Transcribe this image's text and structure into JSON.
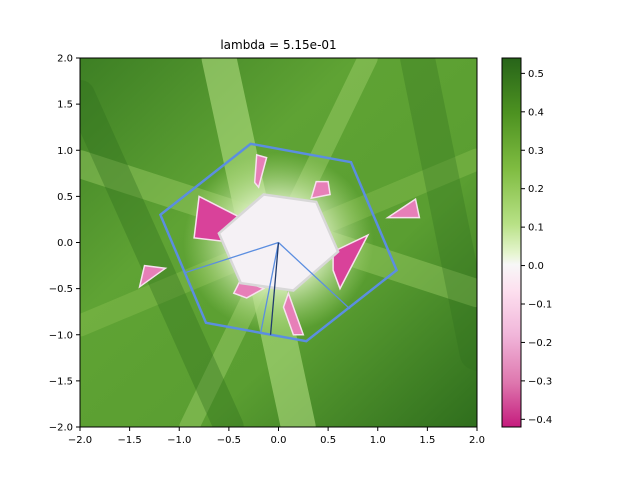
{
  "chart_data": {
    "type": "heatmap",
    "title": "lambda = 5.15e-01",
    "xlabel": "",
    "ylabel": "",
    "xlim": [
      -2.0,
      2.0
    ],
    "ylim": [
      -2.0,
      2.0
    ],
    "x_ticks": [
      -2.0,
      -1.5,
      -1.0,
      -0.5,
      0.0,
      0.5,
      1.0,
      1.5,
      2.0
    ],
    "x_tick_labels": [
      "−2.0",
      "−1.5",
      "−1.0",
      "−0.5",
      "0.0",
      "0.5",
      "1.0",
      "1.5",
      "2.0"
    ],
    "y_ticks": [
      2.0,
      1.5,
      1.0,
      0.5,
      0.0,
      -0.5,
      -1.0,
      -1.5,
      -2.0
    ],
    "y_tick_labels": [
      "2.0",
      "1.5",
      "1.0",
      "0.5",
      "0.0",
      "−0.5",
      "−1.0",
      "−1.5",
      "−2.0"
    ],
    "colorbar": {
      "range": [
        -0.42,
        0.54
      ],
      "ticks": [
        0.5,
        0.4,
        0.3,
        0.2,
        0.1,
        0.0,
        -0.1,
        -0.2,
        -0.3,
        -0.4
      ],
      "tick_labels": [
        "0.5",
        "0.4",
        "0.3",
        "0.2",
        "0.1",
        "0.0",
        "−0.1",
        "−0.2",
        "−0.3",
        "−0.4"
      ],
      "colormap": "PiYG"
    },
    "outer_hexagon": [
      [
        -0.28,
        1.07
      ],
      [
        0.73,
        0.87
      ],
      [
        1.19,
        -0.3
      ],
      [
        0.28,
        -1.07
      ],
      [
        -0.73,
        -0.87
      ],
      [
        -1.19,
        0.3
      ]
    ],
    "inner_hexagon": [
      [
        -0.15,
        0.52
      ],
      [
        0.38,
        0.44
      ],
      [
        0.6,
        -0.1
      ],
      [
        0.15,
        -0.52
      ],
      [
        -0.38,
        -0.44
      ],
      [
        -0.6,
        0.1
      ]
    ],
    "rays": [
      {
        "from": [
          0.0,
          0.0
        ],
        "to": [
          -0.95,
          -0.33
        ]
      },
      {
        "from": [
          0.0,
          0.0
        ],
        "to": [
          0.72,
          -0.72
        ]
      },
      {
        "from": [
          0.0,
          0.0
        ],
        "to": [
          -0.18,
          -0.98
        ]
      },
      {
        "from": [
          0.0,
          0.0
        ],
        "to": [
          -0.08,
          -1.0
        ]
      }
    ],
    "negative_regions": [
      {
        "points": [
          [
            -0.45,
            0.0
          ],
          [
            -0.22,
            0.18
          ],
          [
            -0.8,
            0.5
          ],
          [
            -0.85,
            0.05
          ]
        ],
        "value": -0.35
      },
      {
        "points": [
          [
            -0.2,
            0.6
          ],
          [
            -0.12,
            0.92
          ],
          [
            -0.22,
            0.95
          ],
          [
            -0.24,
            0.65
          ]
        ],
        "value": -0.3
      },
      {
        "points": [
          [
            0.33,
            0.48
          ],
          [
            0.52,
            0.52
          ],
          [
            0.5,
            0.66
          ],
          [
            0.38,
            0.66
          ]
        ],
        "value": -0.3
      },
      {
        "points": [
          [
            0.55,
            -0.1
          ],
          [
            0.9,
            0.08
          ],
          [
            0.62,
            -0.5
          ],
          [
            0.55,
            -0.3
          ]
        ],
        "value": -0.38
      },
      {
        "points": [
          [
            -0.15,
            -0.5
          ],
          [
            -0.32,
            -0.6
          ],
          [
            -0.45,
            -0.55
          ],
          [
            -0.38,
            -0.4
          ]
        ],
        "value": -0.3
      },
      {
        "points": [
          [
            0.1,
            -0.55
          ],
          [
            0.25,
            -1.0
          ],
          [
            0.15,
            -1.0
          ],
          [
            0.05,
            -0.7
          ]
        ],
        "value": -0.28
      },
      {
        "points": [
          [
            -1.4,
            -0.48
          ],
          [
            -1.14,
            -0.28
          ],
          [
            -1.35,
            -0.25
          ]
        ],
        "value": -0.33
      },
      {
        "points": [
          [
            1.1,
            0.27
          ],
          [
            1.38,
            0.47
          ],
          [
            1.42,
            0.27
          ]
        ],
        "value": -0.33
      }
    ],
    "colors": {
      "positive_dark": "#276419",
      "positive_mid": "#7fbc41",
      "neutral": "#f7f7f7",
      "negative_light": "#f1b6da",
      "negative_dark": "#c51b7d",
      "boundary": "#5b8ee0",
      "ray_dark": "#1f3b6e"
    }
  }
}
